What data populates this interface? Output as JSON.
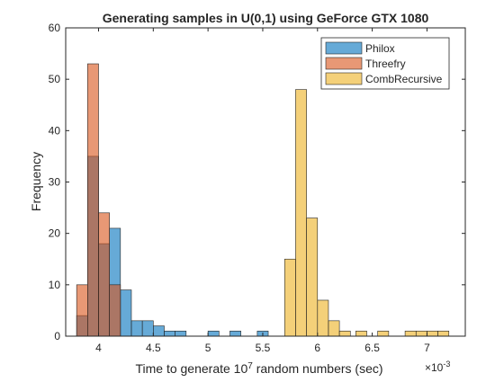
{
  "chart_data": {
    "type": "bar",
    "title": "Generating samples in U(0,1) using GeForce GTX 1080",
    "xlabel": "Time to generate 10",
    "xlabel_superscript": "7",
    "xlabel_tail": " random numbers (sec)",
    "x_exponent_base": "×10",
    "x_exponent_power": "-3",
    "ylabel": "Frequency",
    "xlim": [
      3.7,
      7.35
    ],
    "ylim": [
      0,
      60
    ],
    "xticks": [
      4,
      4.5,
      5,
      5.5,
      6,
      6.5,
      7
    ],
    "xtick_labels": [
      "4",
      "4.5",
      "5",
      "5.5",
      "6",
      "6.5",
      "7"
    ],
    "yticks": [
      0,
      10,
      20,
      30,
      40,
      50,
      60
    ],
    "ytick_labels": [
      "0",
      "10",
      "20",
      "30",
      "40",
      "50",
      "60"
    ],
    "bin_width": 0.1,
    "series": [
      {
        "name": "Philox",
        "color": "#0072BD",
        "bins": [
          {
            "x0": 3.8,
            "count": 4
          },
          {
            "x0": 3.9,
            "count": 35
          },
          {
            "x0": 4.0,
            "count": 18
          },
          {
            "x0": 4.1,
            "count": 21
          },
          {
            "x0": 4.2,
            "count": 9
          },
          {
            "x0": 4.3,
            "count": 3
          },
          {
            "x0": 4.4,
            "count": 3
          },
          {
            "x0": 4.5,
            "count": 2
          },
          {
            "x0": 4.6,
            "count": 1
          },
          {
            "x0": 4.7,
            "count": 1
          },
          {
            "x0": 5.0,
            "count": 1
          },
          {
            "x0": 5.2,
            "count": 1
          },
          {
            "x0": 5.45,
            "count": 1
          }
        ]
      },
      {
        "name": "Threefry",
        "color": "#D95319",
        "bins": [
          {
            "x0": 3.8,
            "count": 10
          },
          {
            "x0": 3.9,
            "count": 53
          },
          {
            "x0": 4.0,
            "count": 24
          },
          {
            "x0": 4.1,
            "count": 10
          }
        ]
      },
      {
        "name": "CombRecursive",
        "color": "#EDB120",
        "bins": [
          {
            "x0": 5.7,
            "count": 15
          },
          {
            "x0": 5.8,
            "count": 48
          },
          {
            "x0": 5.9,
            "count": 23
          },
          {
            "x0": 6.0,
            "count": 7
          },
          {
            "x0": 6.1,
            "count": 3
          },
          {
            "x0": 6.2,
            "count": 1
          },
          {
            "x0": 6.35,
            "count": 1
          },
          {
            "x0": 6.55,
            "count": 1
          },
          {
            "x0": 6.8,
            "count": 1
          },
          {
            "x0": 6.9,
            "count": 1
          },
          {
            "x0": 7.0,
            "count": 1
          },
          {
            "x0": 7.1,
            "count": 1
          }
        ]
      }
    ],
    "legend": {
      "position": "top-right",
      "entries": [
        "Philox",
        "Threefry",
        "CombRecursive"
      ]
    },
    "grid": false
  }
}
